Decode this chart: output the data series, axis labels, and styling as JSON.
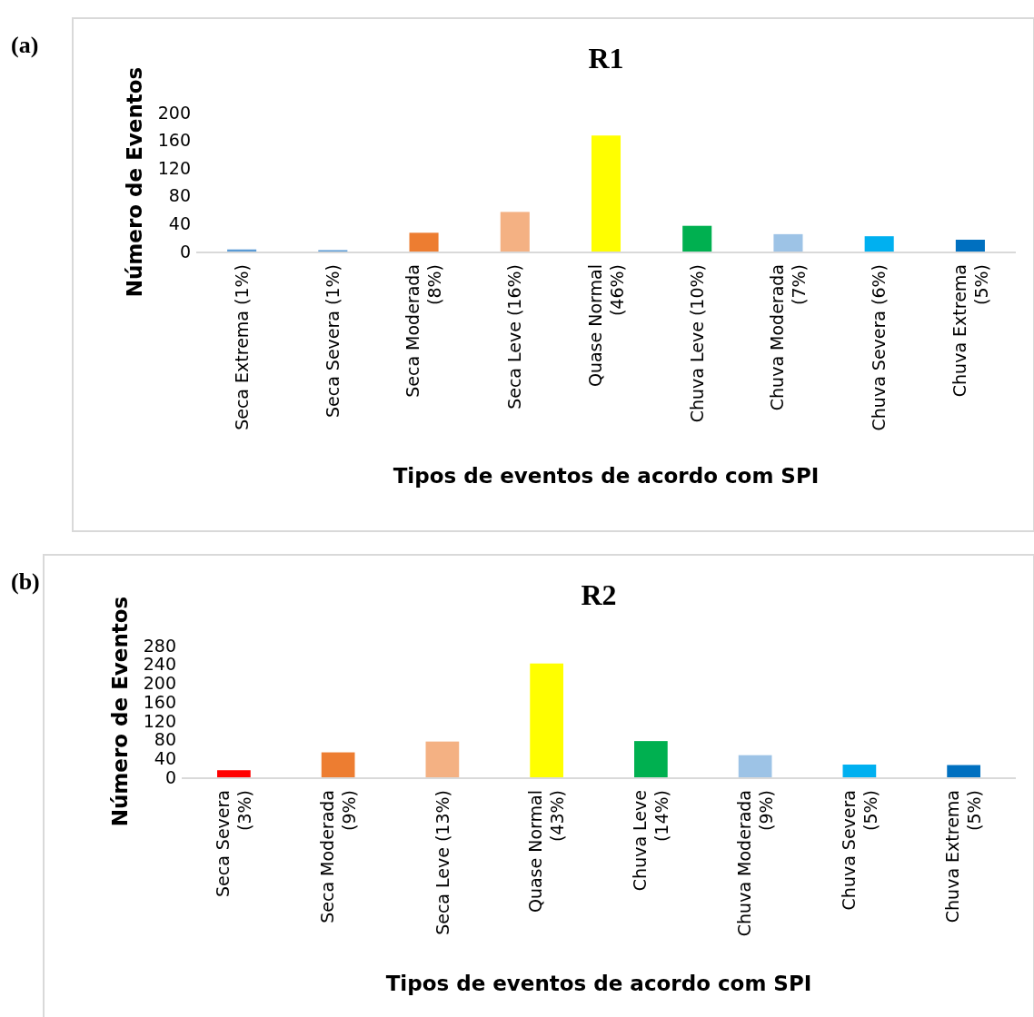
{
  "chart_data": [
    {
      "type": "bar",
      "title": "R1",
      "xlabel": "Tipos de eventos de acordo com SPI",
      "ylabel": "Número de Eventos",
      "annotations": [
        "(a)"
      ],
      "categories": [
        "Seca Extrema (1%)",
        "Seca Severa (1%)",
        "Seca Moderada (8%)",
        "Seca Leve (16%)",
        "Quase Normal (46%)",
        "Chuva Leve (10%)",
        "Chuva Moderada (7%)",
        "Chuva Severa (6%)",
        "Chuva Extrema (5%)"
      ],
      "values": [
        3,
        2,
        27,
        57,
        167,
        37,
        25,
        22,
        17
      ],
      "colors": [
        "#5b9bd5",
        "#5b9bd5",
        "#ed7d31",
        "#f4b183",
        "#ffff00",
        "#00b050",
        "#9dc3e6",
        "#00b0f0",
        "#0070c0"
      ],
      "ylim": [
        0,
        200
      ],
      "yticks": [
        0,
        40,
        80,
        120,
        160,
        200
      ],
      "grid": false
    },
    {
      "type": "bar",
      "title": "R2",
      "xlabel": "Tipos de eventos de acordo com SPI",
      "ylabel": "Número de Eventos",
      "annotations": [
        "(b)"
      ],
      "categories": [
        "Seca Severa (3%)",
        "Seca Moderada (9%)",
        "Seca Leve (13%)",
        "Quase Normal (43%)",
        "Chuva Leve (14%)",
        "Chuva Moderada (9%)",
        "Chuva Severa (5%)",
        "Chuva Extrema (5%)"
      ],
      "values": [
        15,
        53,
        76,
        242,
        77,
        47,
        27,
        26
      ],
      "colors": [
        "#ff0000",
        "#ed7d31",
        "#f4b183",
        "#ffff00",
        "#00b050",
        "#9dc3e6",
        "#00b0f0",
        "#0070c0"
      ],
      "ylim": [
        0,
        280
      ],
      "yticks": [
        0,
        40,
        80,
        120,
        160,
        200,
        240,
        280
      ],
      "grid": false
    }
  ]
}
